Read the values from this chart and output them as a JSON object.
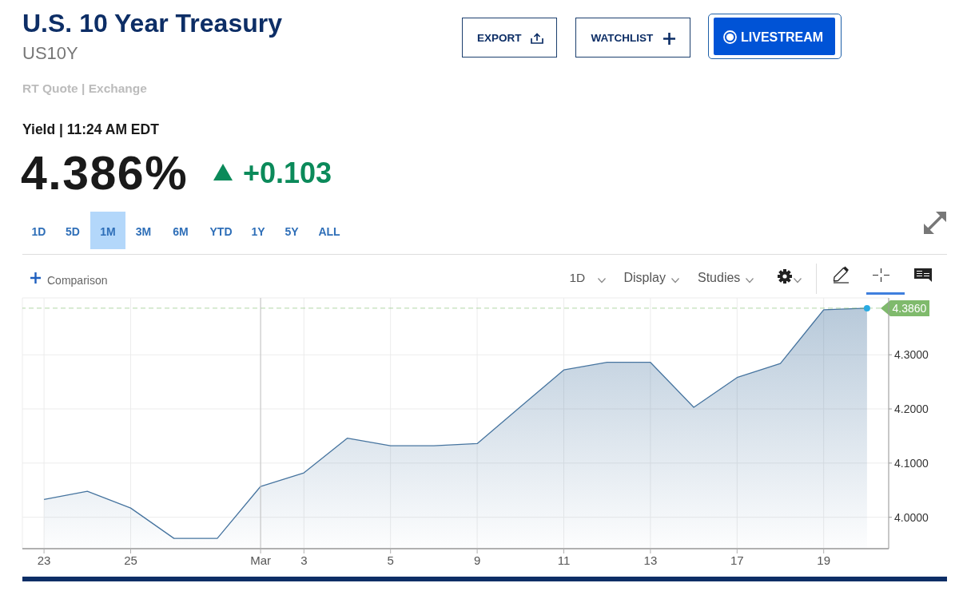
{
  "chart_data": {
    "type": "area",
    "title": "U.S. 10 Year Treasury",
    "subtitle": "US10Y",
    "annotations": [
      "RT Quote | Exchange",
      "Yield | 11:24 AM EDT",
      "4.386%",
      "+0.103",
      "EXPORT",
      "WATCHLIST",
      "LIVESTREAM",
      "1D",
      "5D",
      "1M",
      "3M",
      "6M",
      "YTD",
      "1Y",
      "5Y",
      "ALL",
      "Comparison",
      "1D",
      "Display",
      "Studies"
    ],
    "categories": [
      "23",
      null,
      "25",
      null,
      null,
      "Mar",
      "3",
      null,
      "5",
      null,
      "9",
      null,
      "11",
      null,
      "13",
      null,
      "17",
      null,
      "19",
      null
    ],
    "ylim": [
      3.942,
      4.405
    ],
    "yticks": [
      {
        "value": 4,
        "label": "4.0000"
      },
      {
        "value": 4.1,
        "label": "4.1000"
      },
      {
        "value": 4.2,
        "label": "4.2000"
      },
      {
        "value": 4.3,
        "label": "4.3000"
      }
    ],
    "grid": true,
    "series": [
      {
        "color": "#46749f",
        "values": [
          4.033,
          4.048,
          4.017,
          3.961,
          3.961,
          4.057,
          4.082,
          4.146,
          4.132,
          4.132,
          4.136,
          4.204,
          4.272,
          4.286,
          4.286,
          4.203,
          4.258,
          4.284,
          4.383,
          4.386
        ]
      },
      {
        "type": "scatter",
        "marker": "circle",
        "color": "#29abe2",
        "values": [
          null,
          null,
          null,
          null,
          null,
          null,
          null,
          null,
          null,
          null,
          null,
          null,
          null,
          null,
          null,
          null,
          null,
          null,
          null,
          4.386
        ]
      }
    ],
    "ref_lines": [
      {
        "axis": "y",
        "value": 4.386,
        "label": "4.3860",
        "color": "#7fba6c",
        "line_style": "dashed"
      },
      {
        "axis": "x",
        "value": "Mar",
        "color": "#c4c4c4"
      }
    ]
  }
}
